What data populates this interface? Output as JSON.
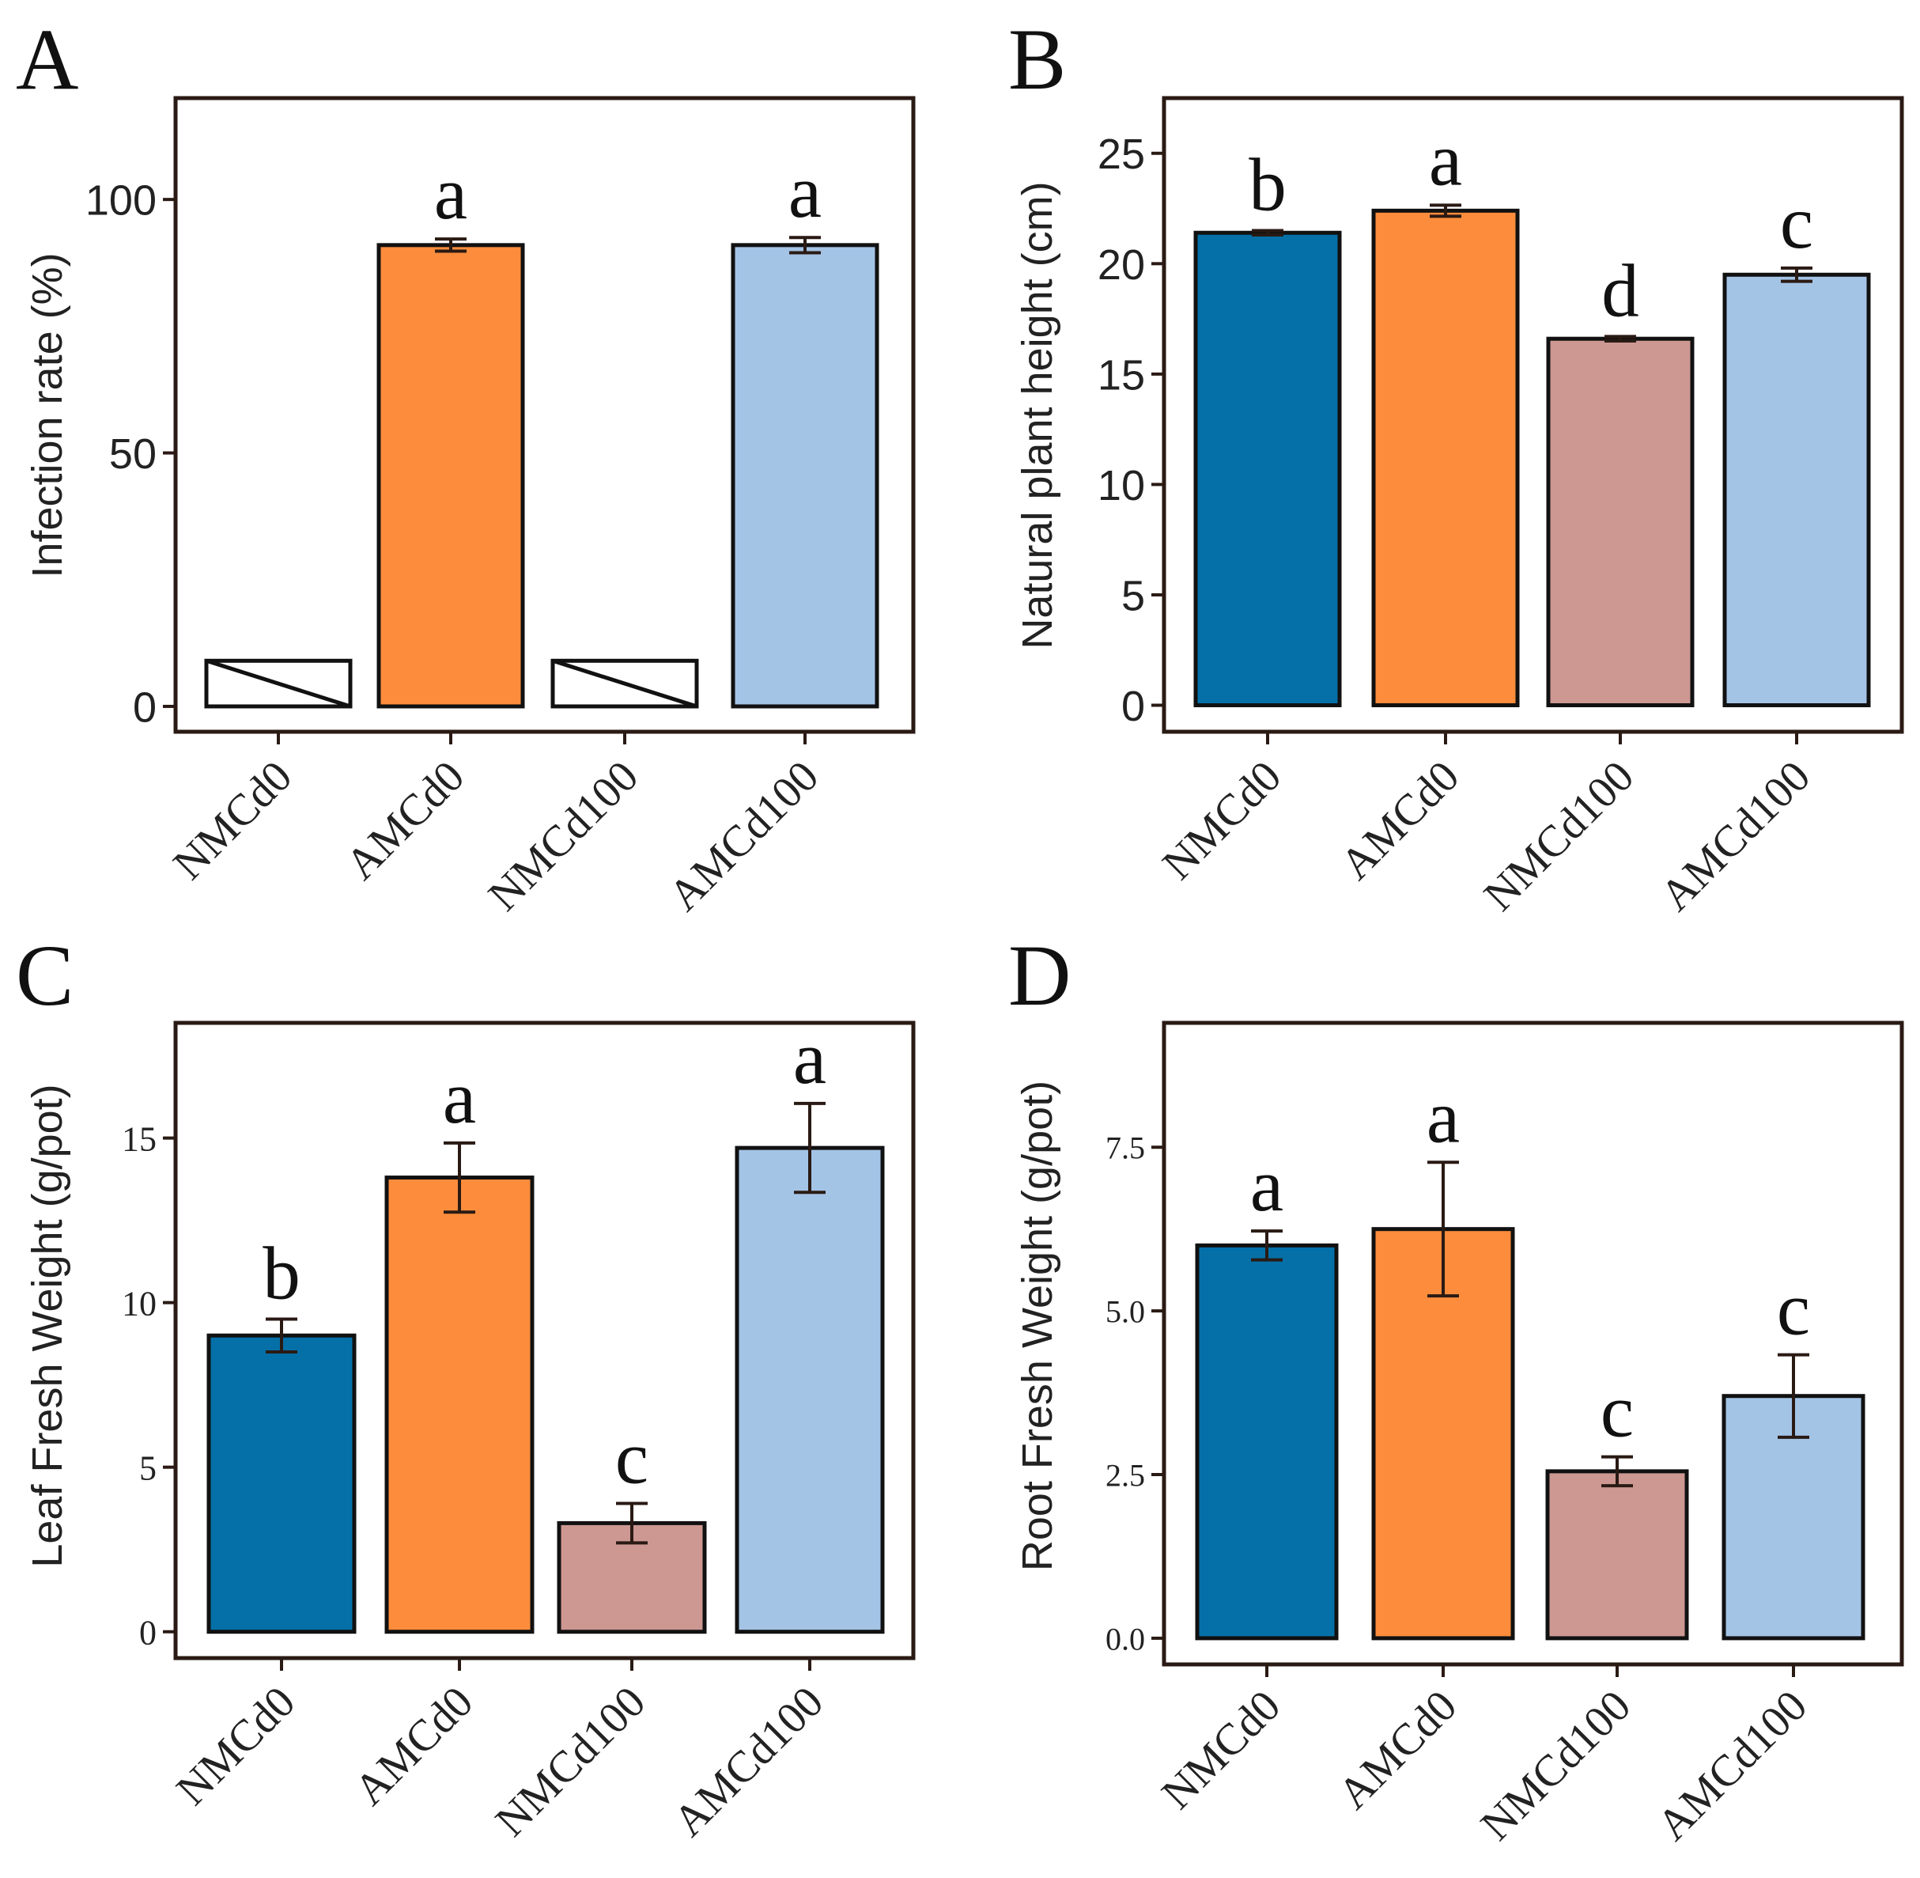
{
  "panels": [
    {
      "letter": "A"
    },
    {
      "letter": "B"
    },
    {
      "letter": "C"
    },
    {
      "letter": "D"
    }
  ],
  "colors": {
    "NMCd0": "#0570a8",
    "AMCd0": "#fd8d3c",
    "NMCd100": "#cd9892",
    "AMCd100": "#a4c4e6",
    "frame": "#2a1a14",
    "bar_edge": "#111111"
  },
  "chart_data": [
    {
      "type": "bar",
      "panel": "A",
      "title": "",
      "xlabel": "",
      "ylabel": "Infection rate (%)",
      "categories": [
        "NMCd0",
        "AMCd0",
        "NMCd100",
        "AMCd100"
      ],
      "values": [
        null,
        91,
        null,
        91
      ],
      "errors": [
        null,
        1.2,
        null,
        1.5
      ],
      "significance": [
        "",
        "a",
        "",
        "a"
      ],
      "not_applicable_marker": [
        true,
        false,
        true,
        false
      ],
      "ylim": [
        -5,
        120
      ],
      "yticks": [
        0,
        50,
        100
      ],
      "ytick_labels": [
        "0",
        "50",
        "100"
      ]
    },
    {
      "type": "bar",
      "panel": "B",
      "title": "",
      "xlabel": "",
      "ylabel": "Natural plant height (cm)",
      "categories": [
        "NMCd0",
        "AMCd0",
        "NMCd100",
        "AMCd100"
      ],
      "values": [
        21.4,
        22.4,
        16.6,
        19.5
      ],
      "errors": [
        0.1,
        0.25,
        0.1,
        0.3
      ],
      "significance": [
        "b",
        "a",
        "d",
        "c"
      ],
      "ylim": [
        -1.2,
        27.5
      ],
      "yticks": [
        0,
        5,
        10,
        15,
        20,
        25
      ],
      "ytick_labels": [
        "0",
        "5",
        "10",
        "15",
        "20",
        "25"
      ]
    },
    {
      "type": "bar",
      "panel": "C",
      "title": "",
      "xlabel": "",
      "ylabel": "Leaf Fresh Weight (g/pot)",
      "categories": [
        "NMCd0",
        "AMCd0",
        "NMCd100",
        "AMCd100"
      ],
      "values": [
        9.0,
        13.8,
        3.3,
        14.7
      ],
      "errors": [
        0.5,
        1.05,
        0.6,
        1.35
      ],
      "significance": [
        "b",
        "a",
        "c",
        "a"
      ],
      "ylim": [
        -0.8,
        18.5
      ],
      "yticks": [
        0,
        5,
        10,
        15
      ],
      "ytick_labels": [
        "0",
        "5",
        "10",
        "15"
      ]
    },
    {
      "type": "bar",
      "panel": "D",
      "title": "",
      "xlabel": "",
      "ylabel": "Root Fresh Weight (g/pot)",
      "categories": [
        "NMCd0",
        "AMCd0",
        "NMCd100",
        "AMCd100"
      ],
      "values": [
        6.0,
        6.25,
        2.55,
        3.7
      ],
      "errors": [
        0.22,
        1.02,
        0.22,
        0.63
      ],
      "significance": [
        "a",
        "a",
        "c",
        "c"
      ],
      "ylim": [
        -0.4,
        9.4
      ],
      "yticks": [
        0,
        2.5,
        5,
        7.5
      ],
      "ytick_labels": [
        "0.0",
        "2.5",
        "5.0",
        "7.5"
      ]
    }
  ]
}
